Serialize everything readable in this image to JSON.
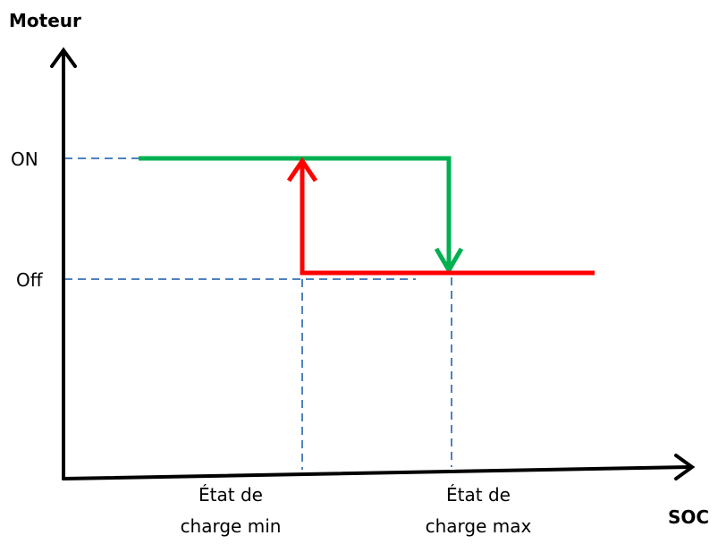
{
  "y_axis": {
    "label": "Moteur"
  },
  "x_axis": {
    "label": "SOC"
  },
  "levels": {
    "on": "ON",
    "off": "Off"
  },
  "thresholds": {
    "min": {
      "line1": "État de",
      "line2": "charge min"
    },
    "max": {
      "line1": "État de",
      "line2": "charge max"
    }
  }
}
